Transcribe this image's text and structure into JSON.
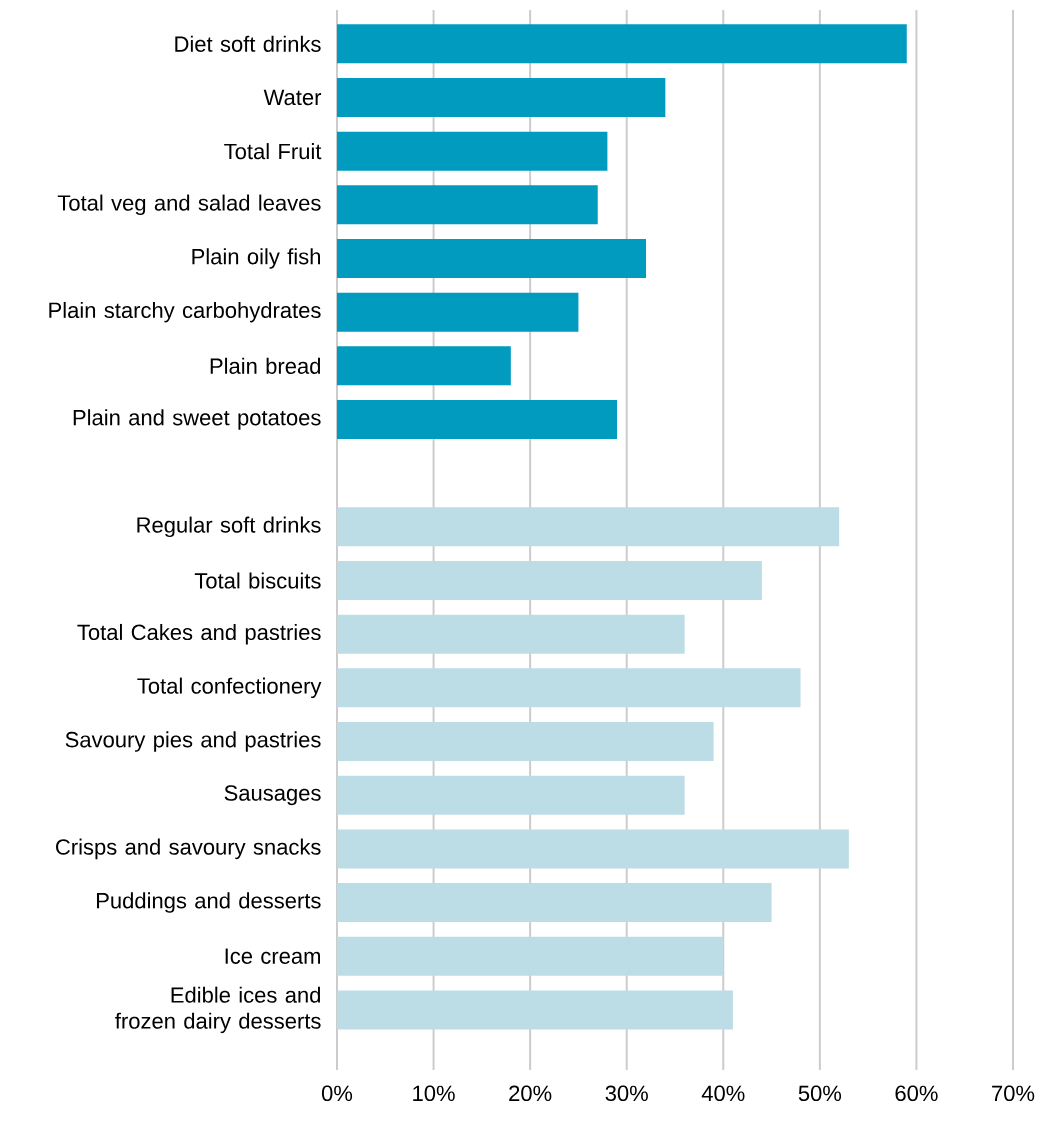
{
  "chart_data": {
    "type": "bar",
    "orientation": "horizontal",
    "categories": [
      "Diet soft drinks",
      "Water",
      "Total Fruit",
      "Total veg and salad leaves",
      "Plain oily fish",
      "Plain starchy carbohydrates",
      "Plain bread",
      "Plain and sweet potatoes",
      null,
      "Regular soft drinks",
      "Total biscuits",
      "Total Cakes and pastries",
      "Total confectionery",
      "Savoury pies and pastries",
      "Sausages",
      "Crisps and savoury snacks",
      "Puddings and desserts",
      "Ice cream",
      "Edible ices and frozen dairy desserts"
    ],
    "values": [
      59,
      34,
      28,
      27,
      32,
      25,
      18,
      29,
      null,
      52,
      44,
      36,
      48,
      39,
      36,
      53,
      45,
      40,
      41
    ],
    "colors": [
      "#009bbf",
      "#009bbf",
      "#009bbf",
      "#009bbf",
      "#009bbf",
      "#009bbf",
      "#009bbf",
      "#009bbf",
      null,
      "#bcdde6",
      "#bcdde6",
      "#bcdde6",
      "#bcdde6",
      "#bcdde6",
      "#bcdde6",
      "#bcdde6",
      "#bcdde6",
      "#bcdde6",
      "#bcdde6"
    ],
    "xlim": [
      0,
      70
    ],
    "xticks": [
      {
        "value": 0,
        "label": "0%"
      },
      {
        "value": 10,
        "label": "10%"
      },
      {
        "value": 20,
        "label": "20%"
      },
      {
        "value": 30,
        "label": "30%"
      },
      {
        "value": 40,
        "label": "40%"
      },
      {
        "value": 50,
        "label": "50%"
      },
      {
        "value": 60,
        "label": "60%"
      },
      {
        "value": 70,
        "label": "70%"
      }
    ],
    "grid": "x"
  }
}
